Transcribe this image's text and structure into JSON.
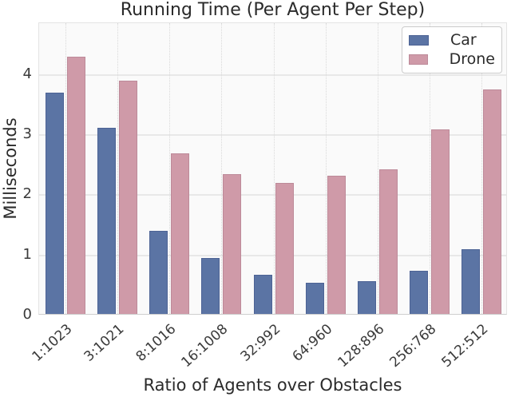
{
  "figure": {
    "title": "Running Time (Per Agent Per Step)",
    "xlabel": "Ratio of Agents over Obstacles",
    "ylabel": "Milliseconds"
  },
  "chart_data": {
    "type": "bar",
    "title": "Running Time (Per Agent Per Step)",
    "xlabel": "Ratio of Agents over Obstacles",
    "ylabel": "Milliseconds",
    "categories": [
      "1:1023",
      "3:1021",
      "8:1016",
      "16:1008",
      "32:992",
      "64:960",
      "128:896",
      "256:768",
      "512:512"
    ],
    "series": [
      {
        "name": "Car",
        "color": "#5b74a4",
        "edge_color": "#4d6395",
        "values": [
          3.68,
          3.1,
          1.38,
          0.93,
          0.65,
          0.52,
          0.55,
          0.72,
          1.07
        ]
      },
      {
        "name": "Drone",
        "color": "#cf9aa8",
        "edge_color": "#bd8a99",
        "values": [
          4.28,
          3.88,
          2.67,
          2.33,
          2.18,
          2.3,
          2.4,
          3.07,
          3.73
        ]
      }
    ],
    "yticks": [
      0,
      1,
      2,
      3,
      4
    ],
    "ylim": [
      0,
      4.86
    ],
    "grid": {
      "horizontal": "solid",
      "vertical": "dotted"
    },
    "legend_position": "upper right",
    "background_color": "#fafafa"
  }
}
